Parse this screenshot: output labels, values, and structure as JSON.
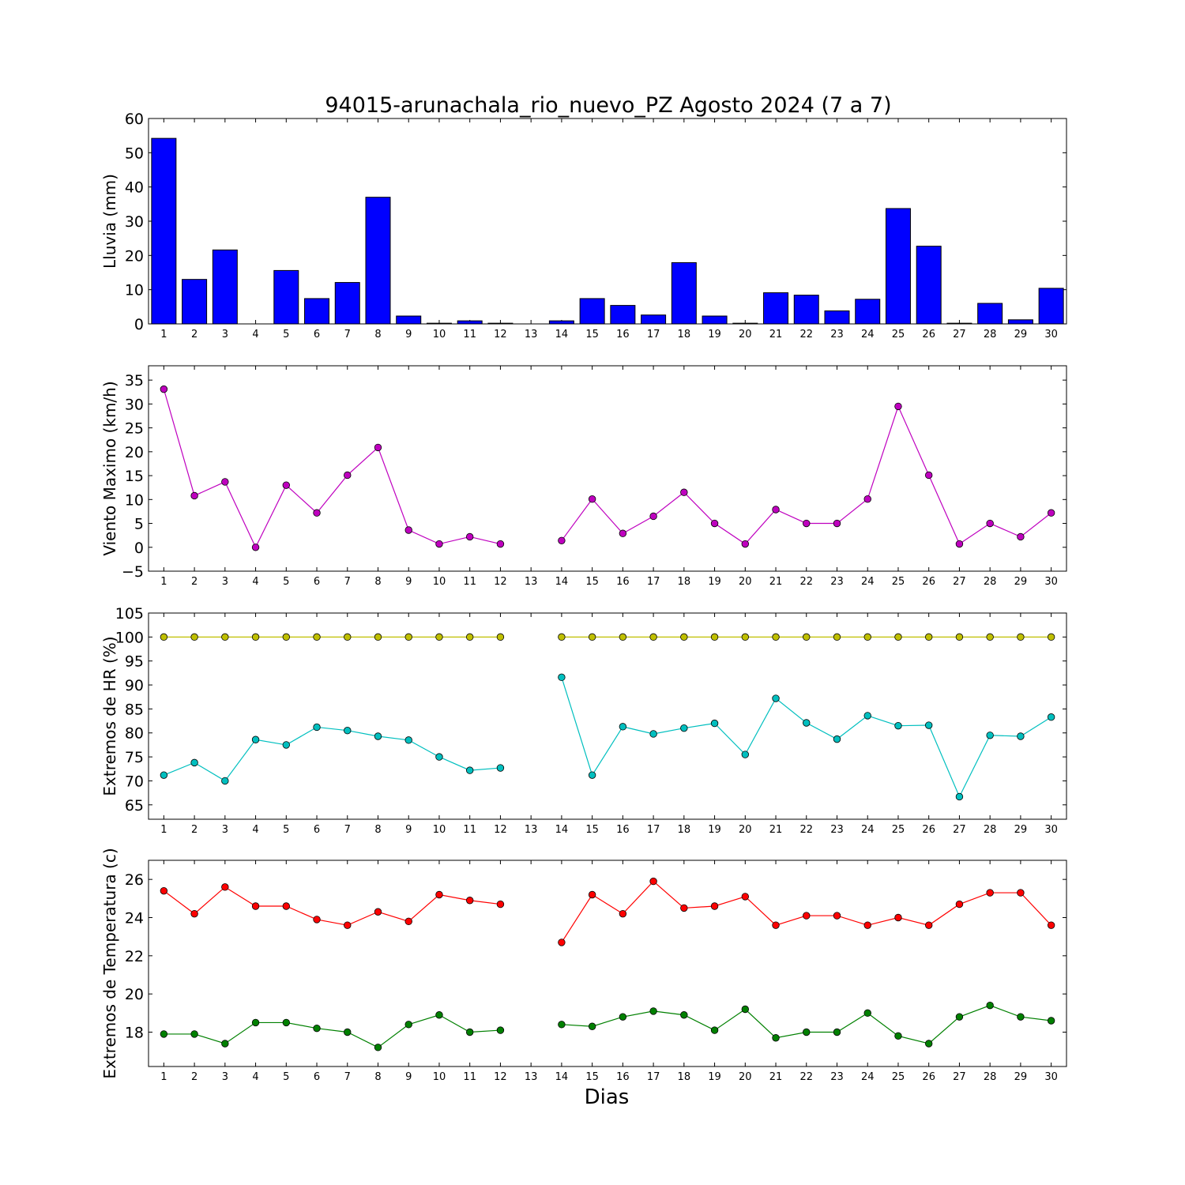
{
  "figure": {
    "title": "94015-arunachala_rio_nuevo_PZ Agosto 2024  (7 a 7)",
    "xlabel": "Dias"
  },
  "chart_data": [
    {
      "type": "bar",
      "ylabel": "Lluvia (mm)",
      "color": "#0000ff",
      "ylim": [
        0,
        60
      ],
      "yticks": [
        0,
        10,
        20,
        30,
        40,
        50,
        60
      ],
      "categories": [
        1,
        2,
        3,
        4,
        5,
        6,
        7,
        8,
        9,
        10,
        11,
        12,
        13,
        14,
        15,
        16,
        17,
        18,
        19,
        20,
        21,
        22,
        23,
        24,
        25,
        26,
        27,
        28,
        29,
        30
      ],
      "values": [
        54.2,
        13.0,
        21.6,
        0.0,
        15.6,
        7.4,
        12.1,
        37.0,
        2.3,
        0.2,
        0.9,
        0.2,
        0.0,
        0.9,
        7.4,
        5.4,
        2.6,
        17.9,
        2.3,
        0.2,
        9.1,
        8.4,
        3.8,
        7.2,
        33.7,
        22.7,
        0.2,
        6.0,
        1.2,
        10.4
      ]
    },
    {
      "type": "line",
      "ylabel": "Viento Maximo (km/h)",
      "ylim": [
        -5,
        38
      ],
      "yticks": [
        -5,
        0,
        5,
        10,
        15,
        20,
        25,
        30,
        35
      ],
      "x": [
        1,
        2,
        3,
        4,
        5,
        6,
        7,
        8,
        9,
        10,
        11,
        12,
        13,
        14,
        15,
        16,
        17,
        18,
        19,
        20,
        21,
        22,
        23,
        24,
        25,
        26,
        27,
        28,
        29,
        30
      ],
      "series": [
        {
          "color": "#bf00bf",
          "values": [
            33.1,
            10.8,
            13.7,
            0.0,
            13.0,
            7.2,
            15.1,
            20.9,
            3.6,
            0.7,
            2.2,
            0.7,
            null,
            1.4,
            10.1,
            2.9,
            6.5,
            11.5,
            5.0,
            0.7,
            7.9,
            5.0,
            5.0,
            10.1,
            29.5,
            15.1,
            0.7,
            5.0,
            2.2,
            7.2
          ]
        }
      ]
    },
    {
      "type": "line",
      "ylabel": "Extremos de HR (%)",
      "ylim": [
        62,
        105
      ],
      "yticks": [
        65,
        70,
        75,
        80,
        85,
        90,
        95,
        100,
        105
      ],
      "x": [
        1,
        2,
        3,
        4,
        5,
        6,
        7,
        8,
        9,
        10,
        11,
        12,
        13,
        14,
        15,
        16,
        17,
        18,
        19,
        20,
        21,
        22,
        23,
        24,
        25,
        26,
        27,
        28,
        29,
        30
      ],
      "series": [
        {
          "color": "#bfbf00",
          "values": [
            100,
            100,
            100,
            100,
            100,
            100,
            100,
            100,
            100,
            100,
            100,
            100,
            null,
            100,
            100,
            100,
            100,
            100,
            100,
            100,
            100,
            100,
            100,
            100,
            100,
            100,
            100,
            100,
            100,
            100
          ]
        },
        {
          "color": "#00bfbf",
          "values": [
            71.2,
            73.8,
            70.0,
            78.6,
            77.5,
            81.2,
            80.5,
            79.3,
            78.5,
            75.0,
            72.2,
            72.7,
            null,
            91.6,
            71.2,
            81.3,
            79.8,
            81.0,
            82.0,
            75.5,
            87.2,
            82.1,
            78.7,
            83.6,
            81.5,
            81.6,
            66.7,
            79.5,
            79.3,
            83.3
          ]
        }
      ]
    },
    {
      "type": "line",
      "ylabel": "Extremos de Temperatura (c)",
      "ylim": [
        16.2,
        27.0
      ],
      "yticks": [
        18,
        20,
        22,
        24,
        26
      ],
      "x": [
        1,
        2,
        3,
        4,
        5,
        6,
        7,
        8,
        9,
        10,
        11,
        12,
        13,
        14,
        15,
        16,
        17,
        18,
        19,
        20,
        21,
        22,
        23,
        24,
        25,
        26,
        27,
        28,
        29,
        30
      ],
      "series": [
        {
          "color": "#ff0000",
          "values": [
            25.4,
            24.2,
            25.6,
            24.6,
            24.6,
            23.9,
            23.6,
            24.3,
            23.8,
            25.2,
            24.9,
            24.7,
            null,
            22.7,
            25.2,
            24.2,
            25.9,
            24.5,
            24.6,
            25.1,
            23.6,
            24.1,
            24.1,
            23.6,
            24.0,
            23.6,
            24.7,
            25.3,
            25.3,
            23.6
          ]
        },
        {
          "color": "#008000",
          "values": [
            17.9,
            17.9,
            17.4,
            18.5,
            18.5,
            18.2,
            18.0,
            17.2,
            18.4,
            18.9,
            18.0,
            18.1,
            null,
            18.4,
            18.3,
            18.8,
            19.1,
            18.9,
            18.1,
            19.2,
            17.7,
            18.0,
            18.0,
            19.0,
            17.8,
            17.4,
            18.8,
            19.4,
            18.8,
            18.6
          ]
        }
      ]
    }
  ]
}
